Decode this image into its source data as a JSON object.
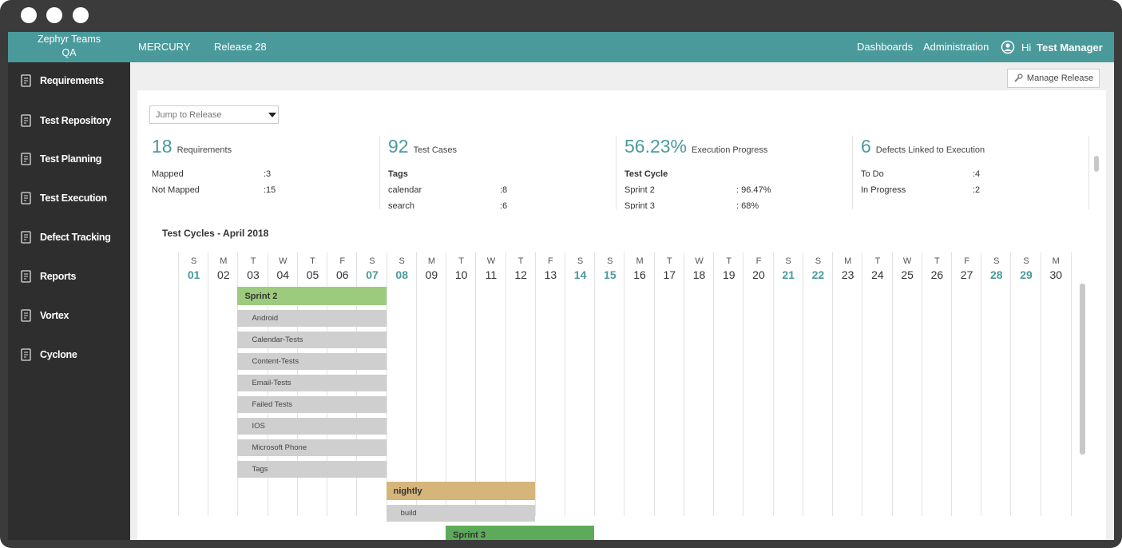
{
  "header": {
    "team": "Zephyr Teams",
    "team_sub": "QA",
    "project": "MERCURY",
    "release": "Release 28",
    "links": [
      "Dashboards",
      "Administration"
    ],
    "greeting": "Hi",
    "user": "Test Manager"
  },
  "sidebar": {
    "items": [
      "Requirements",
      "Test Repository",
      "Test Planning",
      "Test Execution",
      "Defect Tracking",
      "Reports",
      "Vortex",
      "Cyclone"
    ]
  },
  "toolbar": {
    "manage_release": "Manage Release",
    "jump_to_release": "Jump to Release"
  },
  "stats": [
    {
      "number": "18",
      "label": "Requirements",
      "rows": [
        [
          "Mapped",
          ":3"
        ],
        [
          "Not Mapped",
          ":15"
        ]
      ]
    },
    {
      "number": "92",
      "label": "Test Cases",
      "subheader": "Tags",
      "rows": [
        [
          "calendar",
          ":8"
        ],
        [
          "search",
          ":6"
        ]
      ]
    },
    {
      "number": "56.23%",
      "label": "Execution Progress",
      "subheader": "Test Cycle",
      "rows": [
        [
          "Sprint 2",
          ": 96.47%"
        ],
        [
          "Sprint 3",
          ": 68%"
        ]
      ]
    },
    {
      "number": "6",
      "label": "Defects Linked to Execution",
      "rows": [
        [
          "To Do",
          ":4"
        ],
        [
          "In Progress",
          ":2"
        ]
      ]
    }
  ],
  "calendar": {
    "title": "Test Cycles - April 2018",
    "days": [
      {
        "letter": "S",
        "day": "01",
        "weekend": true
      },
      {
        "letter": "M",
        "day": "02",
        "weekend": false
      },
      {
        "letter": "T",
        "day": "03",
        "weekend": false
      },
      {
        "letter": "W",
        "day": "04",
        "weekend": false
      },
      {
        "letter": "T",
        "day": "05",
        "weekend": false
      },
      {
        "letter": "F",
        "day": "06",
        "weekend": false
      },
      {
        "letter": "S",
        "day": "07",
        "weekend": true
      },
      {
        "letter": "S",
        "day": "08",
        "weekend": true
      },
      {
        "letter": "M",
        "day": "09",
        "weekend": false
      },
      {
        "letter": "T",
        "day": "10",
        "weekend": false
      },
      {
        "letter": "W",
        "day": "11",
        "weekend": false
      },
      {
        "letter": "T",
        "day": "12",
        "weekend": false
      },
      {
        "letter": "F",
        "day": "13",
        "weekend": false
      },
      {
        "letter": "S",
        "day": "14",
        "weekend": true
      },
      {
        "letter": "S",
        "day": "15",
        "weekend": true
      },
      {
        "letter": "M",
        "day": "16",
        "weekend": false
      },
      {
        "letter": "T",
        "day": "17",
        "weekend": false
      },
      {
        "letter": "W",
        "day": "18",
        "weekend": false
      },
      {
        "letter": "T",
        "day": "19",
        "weekend": false
      },
      {
        "letter": "F",
        "day": "20",
        "weekend": false
      },
      {
        "letter": "S",
        "day": "21",
        "weekend": true
      },
      {
        "letter": "S",
        "day": "22",
        "weekend": true
      },
      {
        "letter": "M",
        "day": "23",
        "weekend": false
      },
      {
        "letter": "T",
        "day": "24",
        "weekend": false
      },
      {
        "letter": "W",
        "day": "25",
        "weekend": false
      },
      {
        "letter": "T",
        "day": "26",
        "weekend": false
      },
      {
        "letter": "F",
        "day": "27",
        "weekend": false
      },
      {
        "letter": "S",
        "day": "28",
        "weekend": true
      },
      {
        "letter": "S",
        "day": "29",
        "weekend": true
      },
      {
        "letter": "M",
        "day": "30",
        "weekend": false
      }
    ],
    "cycles": [
      {
        "name": "Sprint 2",
        "color": "#9dcb7d",
        "start": 3,
        "end": 7,
        "phases": [
          "Android",
          "Calendar-Tests",
          "Content-Tests",
          "Email-Tests",
          "Failed Tests",
          "IOS",
          "Microsoft Phone",
          "Tags"
        ]
      },
      {
        "name": "nightly",
        "color": "#d6b57b",
        "start": 8,
        "end": 12,
        "phases": [
          "build"
        ]
      },
      {
        "name": "Sprint 3",
        "color": "#5dab5a",
        "start": 10,
        "end": 14,
        "phases": []
      }
    ]
  }
}
